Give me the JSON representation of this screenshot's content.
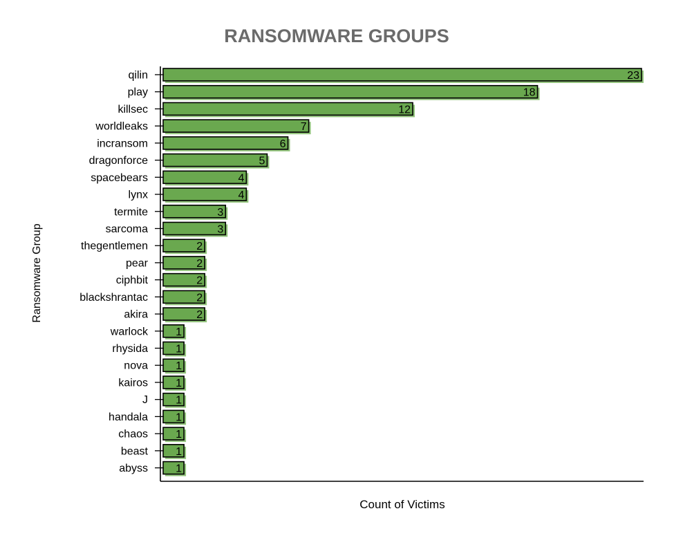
{
  "chart_data": {
    "type": "bar",
    "orientation": "horizontal",
    "title": "RANSOMWARE GROUPS",
    "xlabel": "Count of Victims",
    "ylabel": "Ransomware Group",
    "categories": [
      "qilin",
      "play",
      "killsec",
      "worldleaks",
      "incransom",
      "dragonforce",
      "spacebears",
      "lynx",
      "termite",
      "sarcoma",
      "thegentlemen",
      "pear",
      "ciphbit",
      "blackshrantac",
      "akira",
      "warlock",
      "rhysida",
      "nova",
      "kairos",
      "J",
      "handala",
      "chaos",
      "beast",
      "abyss"
    ],
    "values": [
      23,
      18,
      12,
      7,
      6,
      5,
      4,
      4,
      3,
      3,
      2,
      2,
      2,
      2,
      2,
      1,
      1,
      1,
      1,
      1,
      1,
      1,
      1,
      1
    ],
    "data_labels": [
      "23",
      "18",
      "12",
      "7",
      "6",
      "5",
      "4",
      "4",
      "3",
      "3",
      "2",
      "2",
      "2",
      "2",
      "2",
      "1",
      "1",
      "1",
      "1",
      "1",
      "1",
      "1",
      "1",
      "1"
    ],
    "xlim": [
      0,
      23
    ],
    "grid": false,
    "legend": "none",
    "colors": {
      "bar": "#6aa84f",
      "bar_shadow": "#93c47d",
      "bar_edge": "#000000",
      "title": "#6b6b6b",
      "text": "#000000"
    }
  }
}
